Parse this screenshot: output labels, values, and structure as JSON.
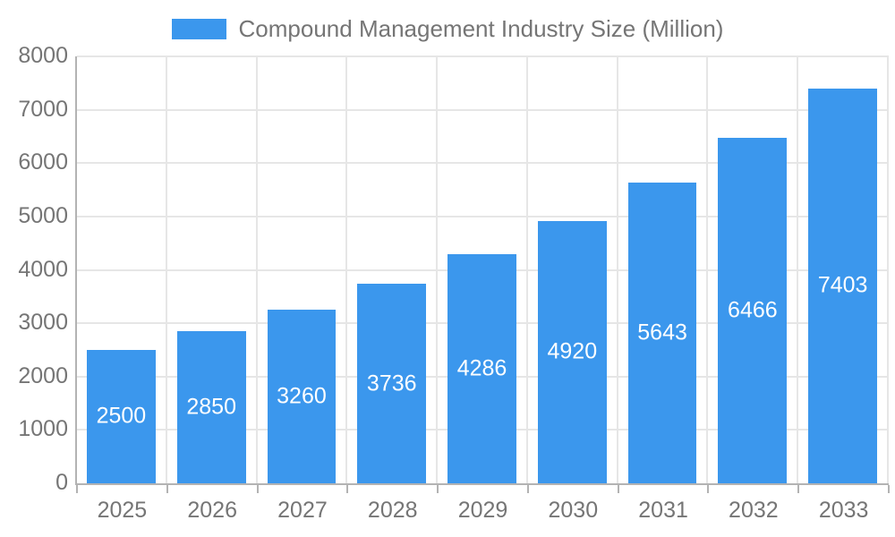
{
  "chart_data": {
    "type": "bar",
    "title": "Compound Management Industry Size (Million)",
    "categories": [
      "2025",
      "2026",
      "2027",
      "2028",
      "2029",
      "2030",
      "2031",
      "2032",
      "2033"
    ],
    "values": [
      2500,
      2850,
      3260,
      3736,
      4286,
      4920,
      5643,
      6466,
      7403
    ],
    "series_name": "Compound Management Industry Size (Million)",
    "xlabel": "",
    "ylabel": "",
    "ylim": [
      0,
      8000
    ],
    "yticks": [
      0,
      1000,
      2000,
      3000,
      4000,
      5000,
      6000,
      7000,
      8000
    ],
    "grid": true,
    "legend_position": "top-center",
    "value_label_position": "inside-center"
  },
  "legend": {
    "label": "Compound Management Industry Size (Million)"
  },
  "colors": {
    "bar": "#3b97ed",
    "axis": "#b3b3b3",
    "grid": "#e6e6e6",
    "tick_label": "#757575",
    "value_label": "#ffffff",
    "background": "#ffffff"
  }
}
